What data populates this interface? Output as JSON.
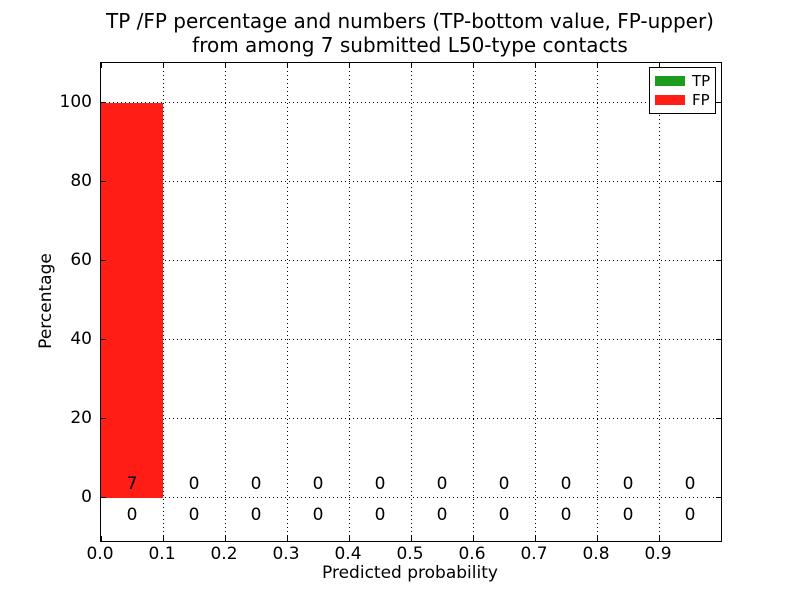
{
  "figure": {
    "title_line1": "TP /FP percentage and numbers (TP-bottom value, FP-upper)",
    "title_line2": "from among 7 submitted L50-type contacts",
    "xlabel": "Predicted probability",
    "ylabel": "Percentage",
    "background": "#ffffff"
  },
  "legend": {
    "position": "upper right",
    "items": [
      {
        "label": "TP",
        "color": "#1c9b1f"
      },
      {
        "label": "FP",
        "color": "#ff1d15"
      }
    ]
  },
  "chart_data": {
    "type": "bar",
    "stacked": true,
    "title": "TP /FP percentage and numbers (TP-bottom value, FP-upper) from among 7 submitted L50-type contacts",
    "xlabel": "Predicted probability",
    "ylabel": "Percentage",
    "xlim": [
      0.0,
      1.0
    ],
    "ylim": [
      -11,
      110
    ],
    "xtick_values": [
      0.0,
      0.1,
      0.2,
      0.3,
      0.4,
      0.5,
      0.6,
      0.7,
      0.8,
      0.9
    ],
    "xtick_labels": [
      "0.0",
      "0.1",
      "0.2",
      "0.3",
      "0.4",
      "0.5",
      "0.6",
      "0.7",
      "0.8",
      "0.9"
    ],
    "ytick_values": [
      0,
      20,
      40,
      60,
      80,
      100
    ],
    "ytick_labels": [
      "0",
      "20",
      "40",
      "60",
      "80",
      "100"
    ],
    "bin_width": 0.1,
    "bin_edges": [
      0.0,
      0.1,
      0.2,
      0.3,
      0.4,
      0.5,
      0.6,
      0.7,
      0.8,
      0.9,
      1.0
    ],
    "bin_centers": [
      0.05,
      0.15,
      0.25,
      0.35,
      0.45,
      0.55,
      0.65,
      0.75,
      0.85,
      0.95
    ],
    "grid": true,
    "legend_position": "upper right",
    "series": [
      {
        "name": "TP",
        "color": "#1c9b1f",
        "count_row": "bottom",
        "percentages": [
          0,
          0,
          0,
          0,
          0,
          0,
          0,
          0,
          0,
          0
        ],
        "counts": [
          0,
          0,
          0,
          0,
          0,
          0,
          0,
          0,
          0,
          0
        ]
      },
      {
        "name": "FP",
        "color": "#ff1d15",
        "count_row": "upper",
        "percentages": [
          100,
          0,
          0,
          0,
          0,
          0,
          0,
          0,
          0,
          0
        ],
        "counts": [
          7,
          0,
          0,
          0,
          0,
          0,
          0,
          0,
          0,
          0
        ]
      }
    ]
  }
}
